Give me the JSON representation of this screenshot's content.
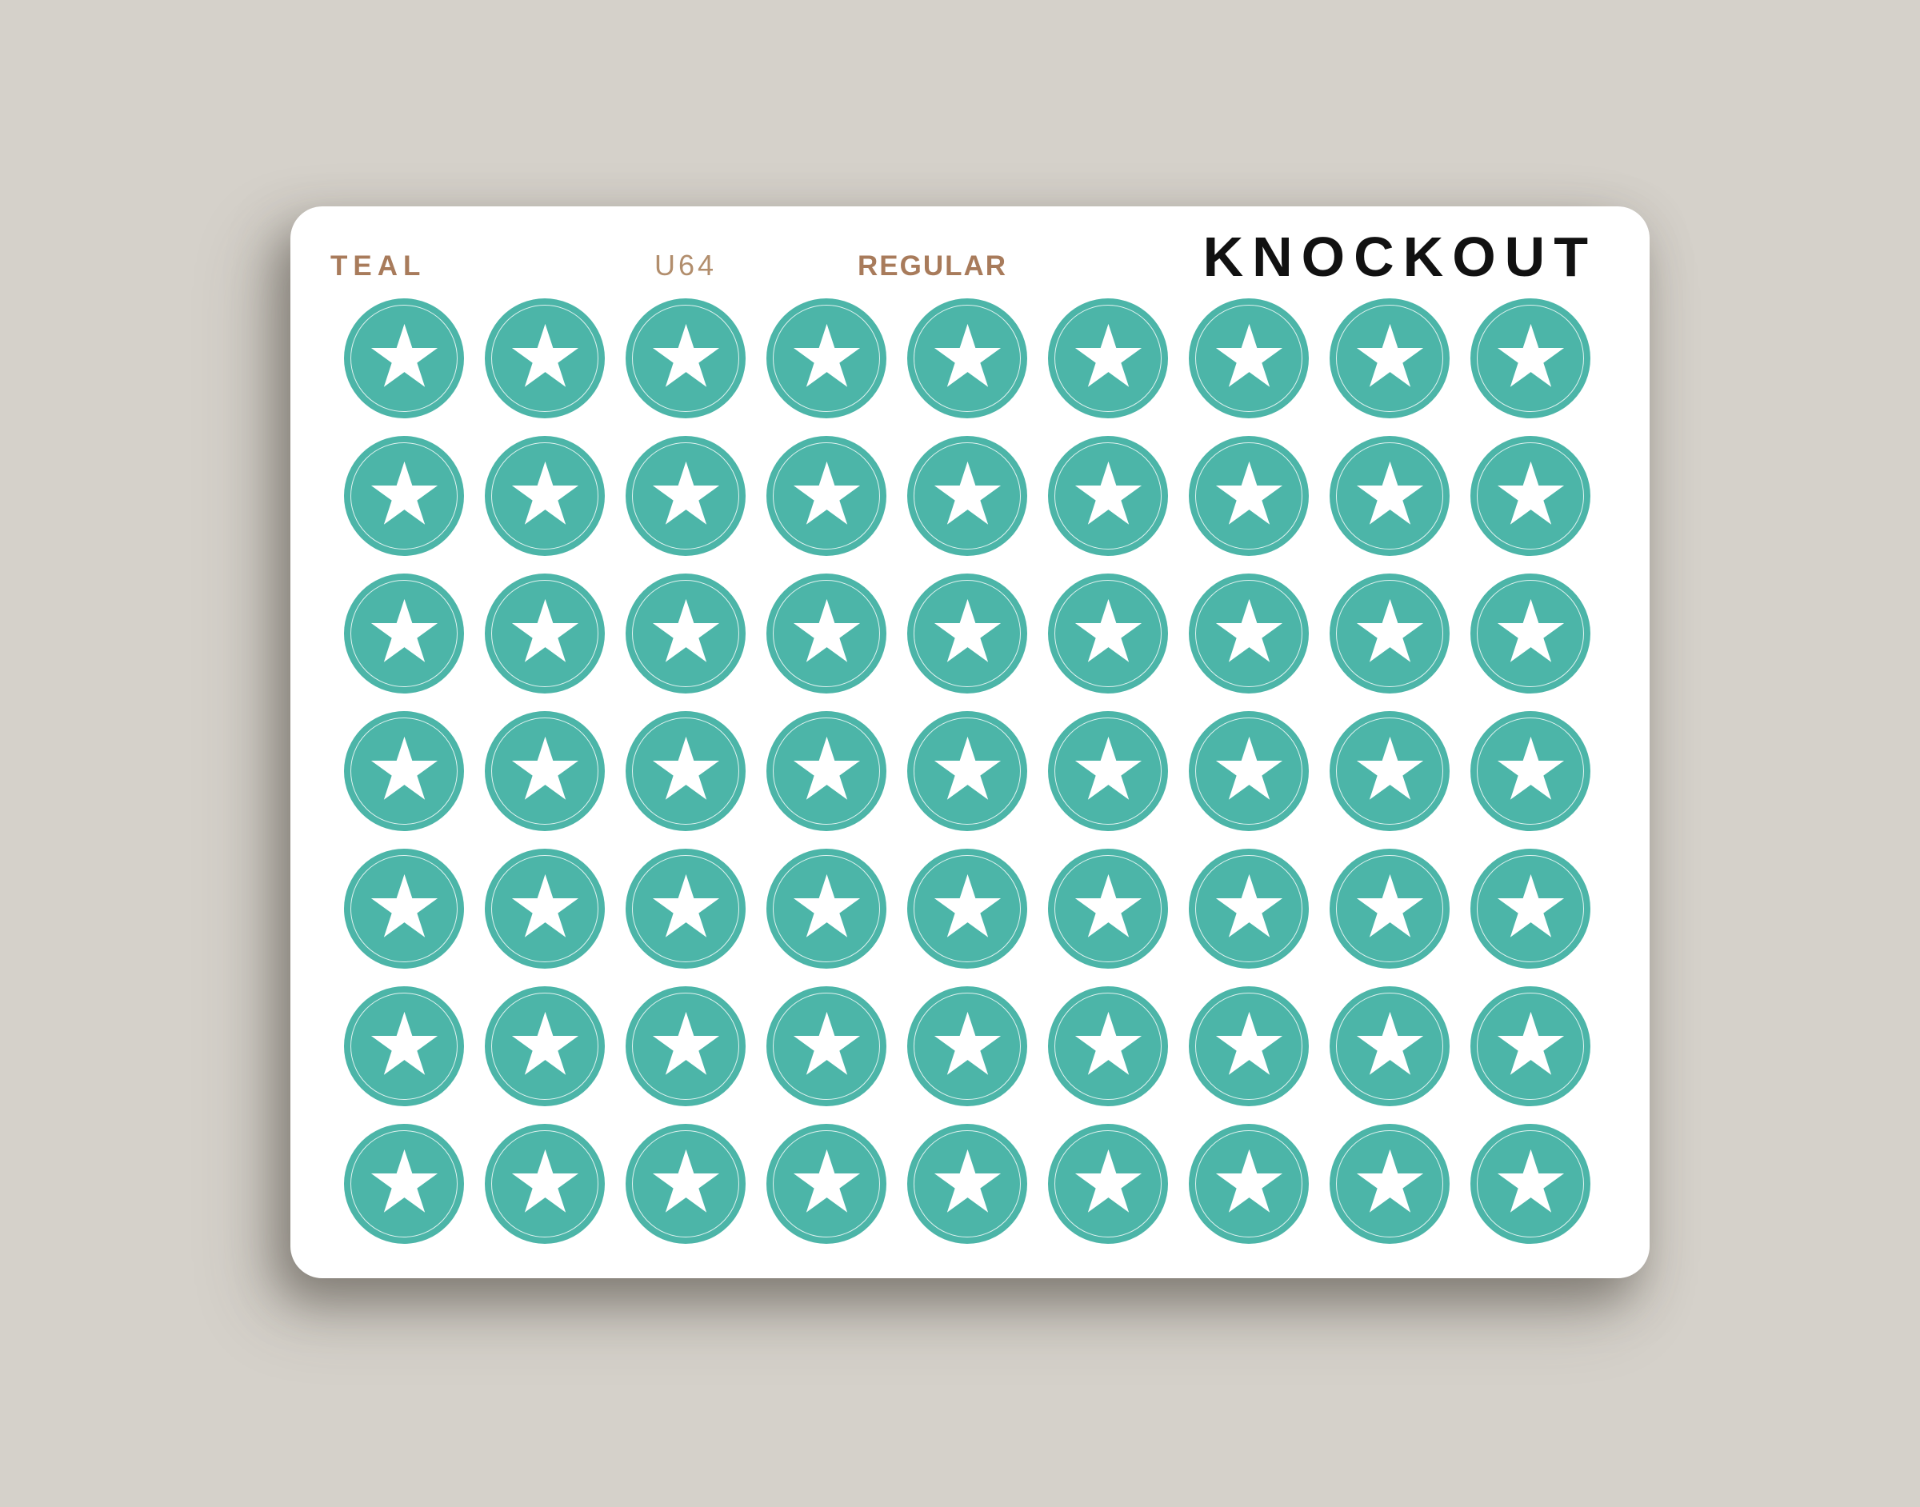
{
  "sheet": {
    "color_name": "TEAL",
    "sku": "U64",
    "style": "REGULAR",
    "brand": "KNOCKOUT"
  },
  "colors": {
    "background": "#D5D1CA",
    "card": "#FFFFFF",
    "sticker": "#4CB5A8",
    "star": "#FFFFFF",
    "label_brown": "#A87B5B",
    "sku_tan": "#B28E6D",
    "brand_black": "#111111"
  },
  "grid": {
    "rows": 7,
    "columns": 9,
    "count": 63,
    "icon": "star-icon"
  }
}
